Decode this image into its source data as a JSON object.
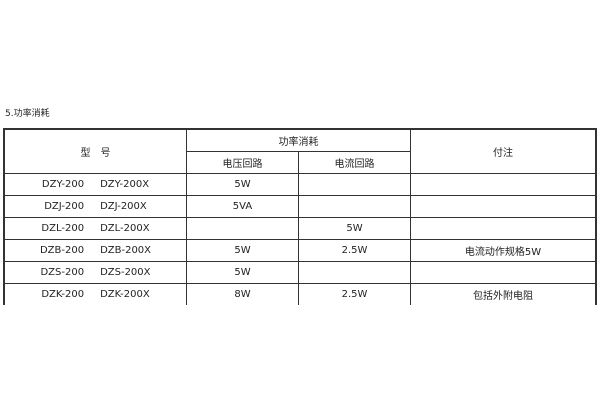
{
  "section_title": "5.功率消耗",
  "table": {
    "header": {
      "model": "型　号",
      "power": "功率消耗",
      "voltage_circuit": "电压回路",
      "current_circuit": "电流回路",
      "remarks": "付注"
    },
    "rows": [
      {
        "model_a": "DZY-200",
        "model_b": "DZY-200X",
        "voltage": "5W",
        "current": "",
        "remarks": ""
      },
      {
        "model_a": "DZJ-200",
        "model_b": "DZJ-200X",
        "voltage": "5VA",
        "current": "",
        "remarks": ""
      },
      {
        "model_a": "DZL-200",
        "model_b": "DZL-200X",
        "voltage": "",
        "current": "5W",
        "remarks": ""
      },
      {
        "model_a": "DZB-200",
        "model_b": "DZB-200X",
        "voltage": "5W",
        "current": "2.5W",
        "remarks": "电流动作规格5W"
      },
      {
        "model_a": "DZS-200",
        "model_b": "DZS-200X",
        "voltage": "5W",
        "current": "",
        "remarks": ""
      },
      {
        "model_a": "DZK-200",
        "model_b": "DZK-200X",
        "voltage": "8W",
        "current": "2.5W",
        "remarks": "包括外附电阻"
      }
    ]
  }
}
